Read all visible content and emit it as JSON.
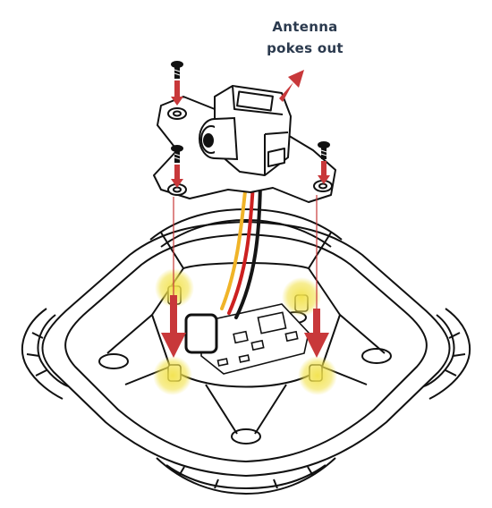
{
  "callout": {
    "line1": "Antenna",
    "line2": "pokes out"
  },
  "colors": {
    "line": "#111111",
    "arrow": "#c8383a",
    "highlight": "#f2e24a",
    "wire_yellow": "#f0b428",
    "wire_red": "#cc2020",
    "wire_black": "#151515",
    "label": "#2b3a4e"
  },
  "icons": {
    "screw": "screw-icon",
    "arrow": "arrow-down-icon",
    "antenna_arrow": "arrow-up-right-icon"
  }
}
